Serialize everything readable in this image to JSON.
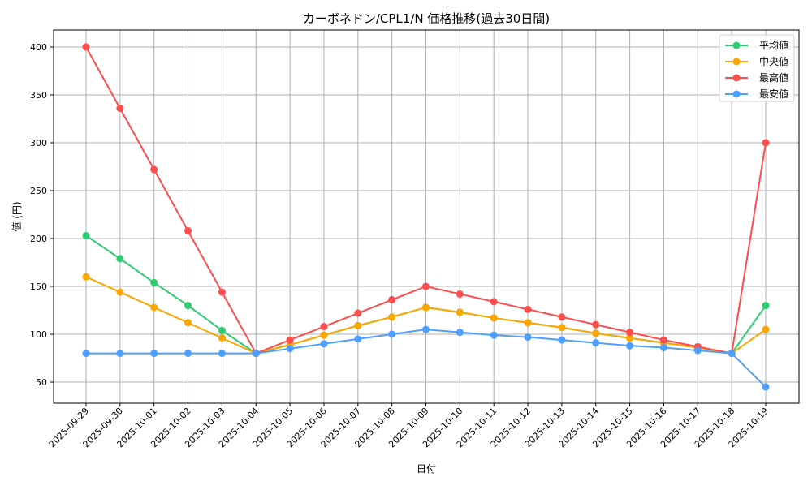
{
  "chart_data": {
    "type": "line",
    "title": "カーボネドン/CPL1/N 価格推移(過去30日間)",
    "xlabel": "日付",
    "ylabel": "値 (円)",
    "ylim": [
      27,
      418
    ],
    "yticks": [
      50,
      100,
      150,
      200,
      250,
      300,
      350,
      400
    ],
    "grid": true,
    "legend_position": "upper right",
    "categories": [
      "2025-09-29",
      "2025-09-30",
      "2025-10-01",
      "2025-10-02",
      "2025-10-03",
      "2025-10-04",
      "2025-10-05",
      "2025-10-06",
      "2025-10-07",
      "2025-10-08",
      "2025-10-09",
      "2025-10-10",
      "2025-10-11",
      "2025-10-12",
      "2025-10-13",
      "2025-10-14",
      "2025-10-15",
      "2025-10-16",
      "2025-10-17",
      "2025-10-18",
      "2025-10-19"
    ],
    "series": [
      {
        "name": "平均値",
        "color": "#2ecc71",
        "values": [
          203,
          179,
          154,
          130,
          104,
          80,
          89,
          99,
          109,
          118,
          128,
          123,
          117,
          112,
          107,
          101,
          96,
          91,
          86,
          80,
          130
        ]
      },
      {
        "name": "中央値",
        "color": "#ffa500",
        "values": [
          160,
          144,
          128,
          112,
          96,
          80,
          89,
          99,
          109,
          118,
          128,
          123,
          117,
          112,
          107,
          101,
          96,
          91,
          86,
          80,
          105
        ]
      },
      {
        "name": "最高値",
        "color": "#ff4c4c",
        "values": [
          400,
          336,
          272,
          208,
          144,
          80,
          94,
          108,
          122,
          136,
          150,
          142,
          134,
          126,
          118,
          110,
          102,
          94,
          87,
          80,
          300
        ]
      },
      {
        "name": "最安値",
        "color": "#4d9fff",
        "values": [
          80,
          80,
          80,
          80,
          80,
          80,
          85,
          90,
          95,
          100,
          105,
          102,
          99,
          97,
          94,
          91,
          88,
          86,
          83,
          80,
          45
        ]
      }
    ]
  }
}
